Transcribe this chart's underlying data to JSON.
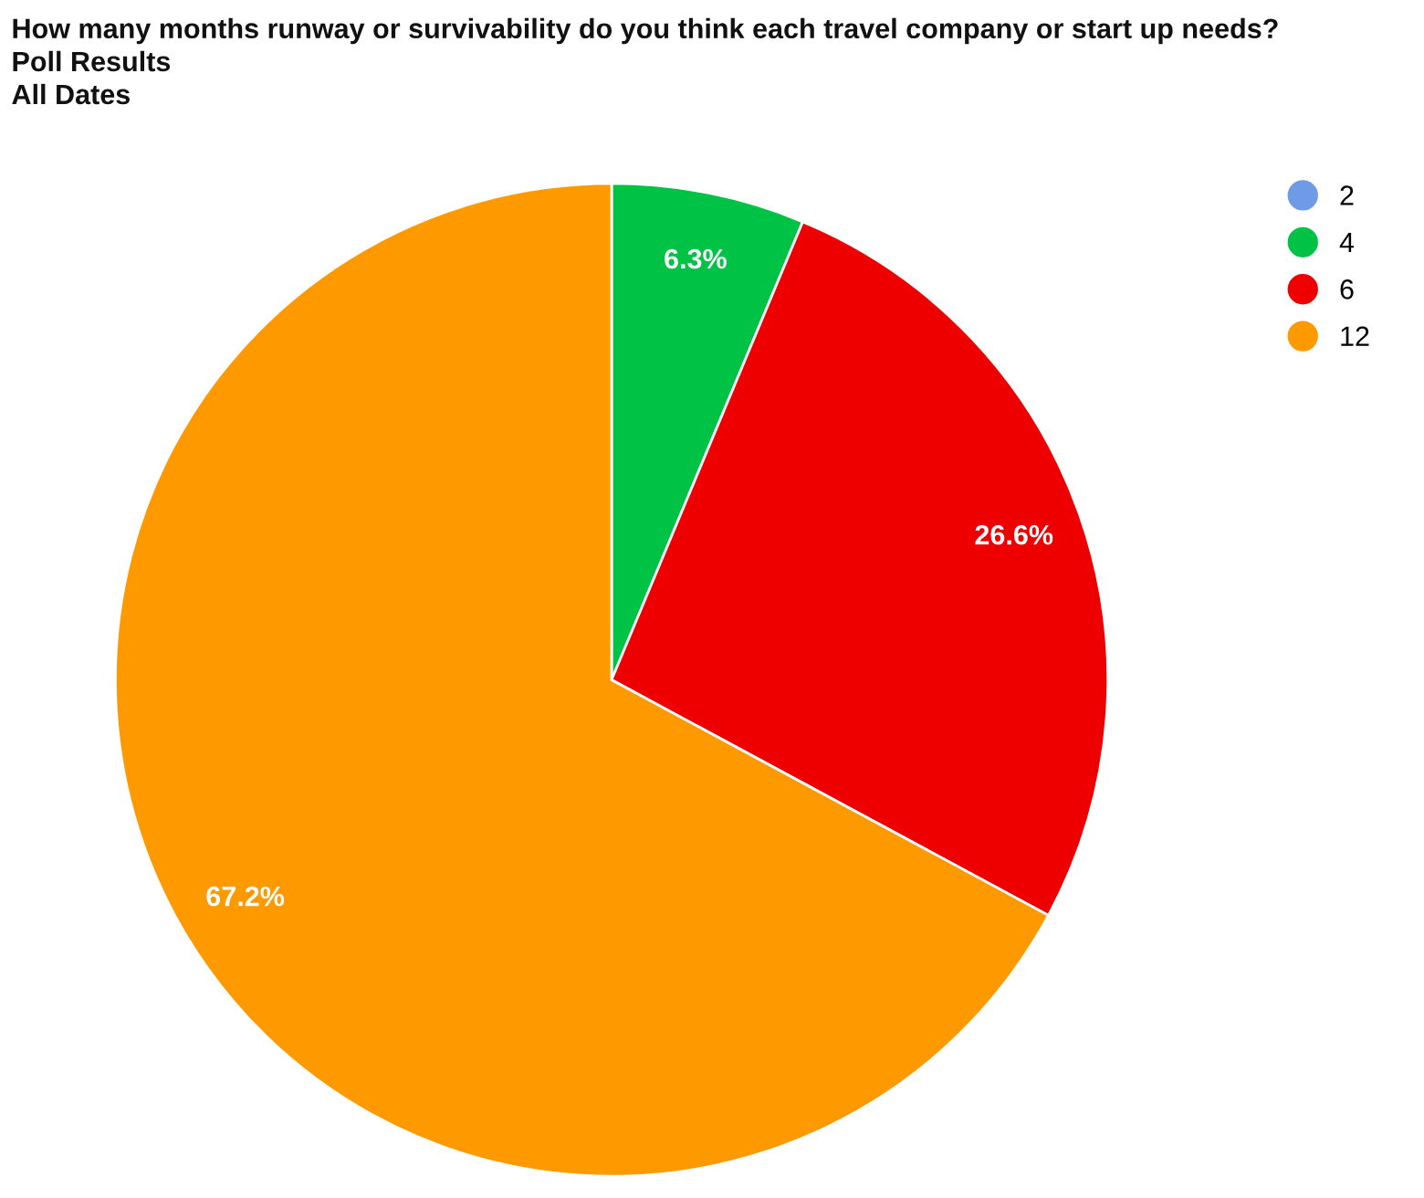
{
  "chart_data": {
    "type": "pie",
    "title": "How many months runway or survivability do you think each travel company or start up needs?",
    "subtitle": "Poll Results",
    "annotations": [
      "All Dates"
    ],
    "categories": [
      "2",
      "4",
      "6",
      "12"
    ],
    "values": [
      0,
      6.3,
      26.6,
      67.2
    ],
    "colors": [
      "#6f9be6",
      "#00c244",
      "#ee0000",
      "#ff9900"
    ],
    "value_labels": [
      null,
      "6.3%",
      "26.6%",
      "67.2%"
    ],
    "legend": "top right"
  }
}
